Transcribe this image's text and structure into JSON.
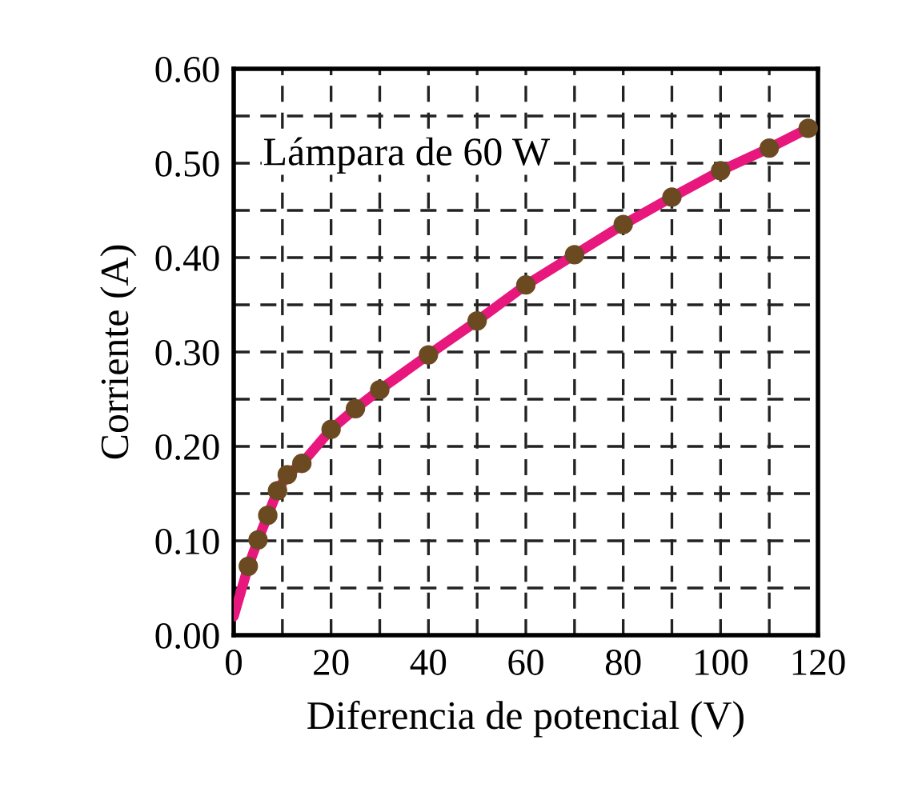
{
  "chart_data": {
    "type": "scatter",
    "xlabel": "Diferencia de potencial (V)",
    "ylabel": "Corriente (A)",
    "annotations": [
      "Lámpara de 60 W"
    ],
    "series": [
      {
        "type": "line",
        "color": "#e8177d",
        "x": [
          0,
          3,
          5,
          7,
          9,
          11,
          14,
          20,
          25,
          30,
          40,
          50,
          60,
          70,
          80,
          90,
          100,
          110,
          118
        ],
        "values": [
          0.02,
          0.073,
          0.101,
          0.127,
          0.153,
          0.17,
          0.182,
          0.218,
          0.24,
          0.26,
          0.297,
          0.333,
          0.371,
          0.403,
          0.435,
          0.464,
          0.492,
          0.516,
          0.537
        ]
      },
      {
        "color": "#6b4a22",
        "marker": "circle",
        "x": [
          3,
          5,
          7,
          9,
          11,
          14,
          20,
          25,
          30,
          40,
          50,
          60,
          70,
          80,
          90,
          100,
          110,
          118
        ],
        "values": [
          0.073,
          0.101,
          0.127,
          0.153,
          0.17,
          0.182,
          0.218,
          0.24,
          0.26,
          0.297,
          0.333,
          0.371,
          0.403,
          0.435,
          0.464,
          0.492,
          0.516,
          0.537
        ]
      }
    ],
    "xlim": [
      0,
      120
    ],
    "xticks": [
      0,
      20,
      40,
      60,
      80,
      100,
      120,
      {
        "value": 10,
        "label": null
      },
      {
        "value": 30,
        "label": null
      },
      {
        "value": 50,
        "label": null
      },
      {
        "value": 70,
        "label": null
      },
      {
        "value": 90,
        "label": null
      },
      {
        "value": 110,
        "label": null
      }
    ],
    "ylim": [
      0,
      0.6
    ],
    "yticks": [
      {
        "value": 0,
        "label": "0.00"
      },
      {
        "value": 0.1,
        "label": "0.10"
      },
      {
        "value": 0.2,
        "label": "0.20"
      },
      {
        "value": 0.3,
        "label": "0.30"
      },
      {
        "value": 0.4,
        "label": "0.40"
      },
      {
        "value": 0.5,
        "label": "0.50"
      },
      {
        "value": 0.6,
        "label": "0.60"
      },
      {
        "value": 0.05,
        "label": null
      },
      {
        "value": 0.15,
        "label": null
      },
      {
        "value": 0.25,
        "label": null
      },
      {
        "value": 0.35,
        "label": null
      },
      {
        "value": 0.45,
        "label": null
      },
      {
        "value": 0.55,
        "label": null
      }
    ],
    "grid": true,
    "line_style": "solid"
  }
}
